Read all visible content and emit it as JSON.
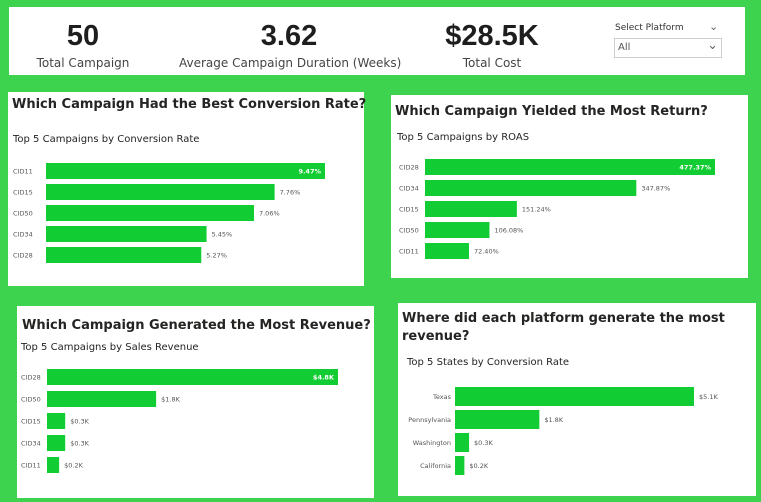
{
  "kpis": [
    {
      "value": "50",
      "label": "Total Campaign"
    },
    {
      "value": "3.62",
      "label": "Average Campaign Duration (Weeks)"
    },
    {
      "value": "$28.5K",
      "label": "Total Cost"
    }
  ],
  "slicer": {
    "title": "Select Platform",
    "value": "All"
  },
  "cards": [
    {
      "title": "Which Campaign Had the Best Conversion Rate?",
      "subtitle": "Top 5 Campaigns by Conversion Rate"
    },
    {
      "title": "Which Campaign Yielded the Most Return?",
      "subtitle": "Top 5 Campaigns by ROAS"
    },
    {
      "title": "Which Campaign Generated the Most Revenue?",
      "subtitle": "Top 5 Campaigns by Sales Revenue"
    },
    {
      "title": "Where did each platform generate the most revenue?",
      "subtitle": "Top 5 States by Conversion Rate"
    }
  ],
  "colors": {
    "background": "#3dd34e",
    "bar": "#11cc33",
    "panel": "#ffffff"
  },
  "chart_data": [
    {
      "type": "bar",
      "orientation": "horizontal",
      "title": "Top 5 Campaigns by Conversion Rate",
      "categories": [
        "CID11",
        "CID15",
        "CID50",
        "CID34",
        "CID28"
      ],
      "values": [
        9.47,
        7.76,
        7.06,
        5.45,
        5.27
      ],
      "labels": [
        "9.47%",
        "7.76%",
        "7.06%",
        "5.45%",
        "5.27%"
      ]
    },
    {
      "type": "bar",
      "orientation": "horizontal",
      "title": "Top 5 Campaigns by ROAS",
      "categories": [
        "CID28",
        "CID34",
        "CID15",
        "CID50",
        "CID11"
      ],
      "values": [
        477.37,
        347.87,
        151.24,
        106.08,
        72.4
      ],
      "labels": [
        "477.37%",
        "347.87%",
        "151.24%",
        "106.08%",
        "72.40%"
      ]
    },
    {
      "type": "bar",
      "orientation": "horizontal",
      "title": "Top 5 Campaigns by Sales Revenue",
      "categories": [
        "CID28",
        "CID50",
        "CID15",
        "CID34",
        "CID11"
      ],
      "values": [
        4.8,
        1.8,
        0.3,
        0.3,
        0.2
      ],
      "labels": [
        "$4.8K",
        "$1.8K",
        "$0.3K",
        "$0.3K",
        "$0.2K"
      ]
    },
    {
      "type": "bar",
      "orientation": "horizontal",
      "title": "Top 5 States by Conversion Rate",
      "categories": [
        "Texas",
        "Pennsylvania",
        "Washington",
        "California"
      ],
      "values": [
        5.1,
        1.8,
        0.3,
        0.2
      ],
      "labels": [
        "$5.1K",
        "$1.8K",
        "$0.3K",
        "$0.2K"
      ]
    }
  ]
}
